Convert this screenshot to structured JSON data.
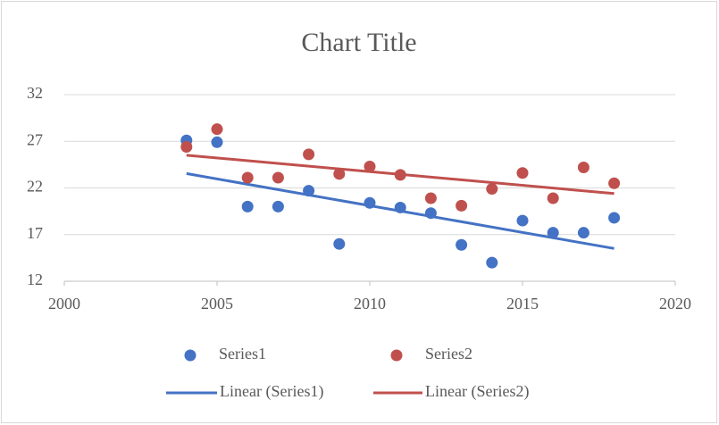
{
  "chart_data": {
    "type": "scatter",
    "title": "Chart Title",
    "x": [
      2004,
      2005,
      2006,
      2007,
      2008,
      2009,
      2010,
      2011,
      2012,
      2013,
      2014,
      2015,
      2016,
      2017,
      2018
    ],
    "series": [
      {
        "name": "Series1",
        "color": "#4472c4",
        "trendline": "Linear (Series1)",
        "values": [
          27.1,
          26.9,
          20.0,
          20.0,
          21.7,
          16.0,
          20.4,
          19.9,
          19.3,
          15.9,
          14.0,
          18.5,
          17.2,
          17.2,
          18.8
        ]
      },
      {
        "name": "Series2",
        "color": "#c0504d",
        "trendline": "Linear (Series2)",
        "values": [
          26.4,
          28.3,
          23.1,
          23.1,
          25.6,
          23.5,
          24.3,
          23.4,
          20.9,
          20.1,
          21.9,
          23.6,
          20.9,
          24.2,
          22.5
        ]
      }
    ],
    "xlim": [
      2000,
      2020
    ],
    "xticks": [
      2000,
      2005,
      2010,
      2015,
      2020
    ],
    "ylim": [
      12,
      32
    ],
    "yticks": [
      12,
      17,
      22,
      27,
      32
    ],
    "grid": true,
    "legend": "bottom"
  }
}
